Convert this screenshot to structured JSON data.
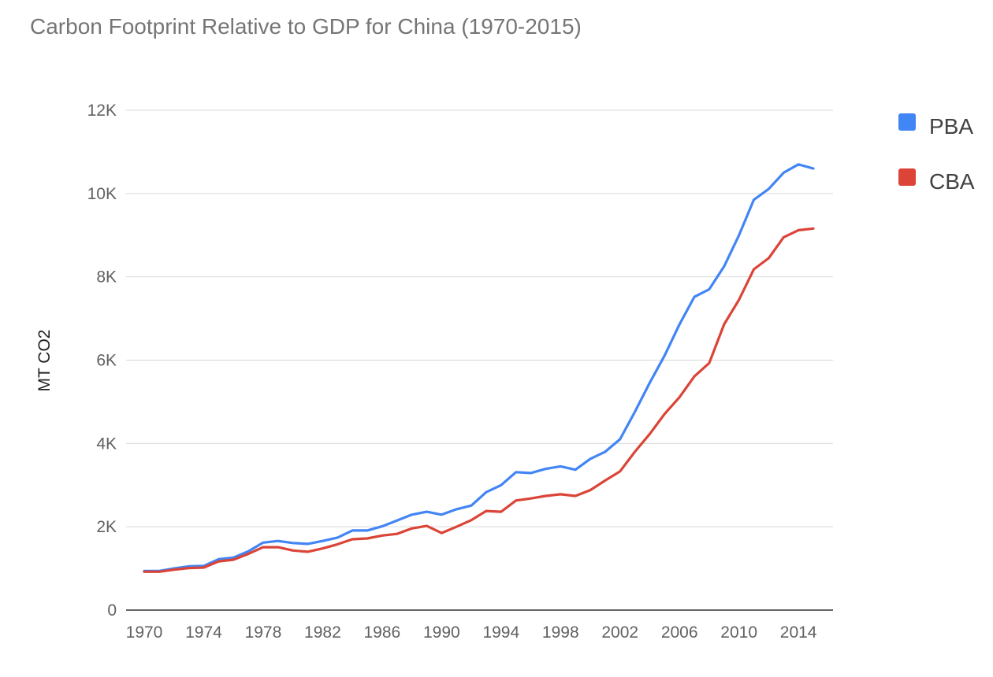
{
  "chart_data": {
    "type": "line",
    "title": "Carbon Footprint Relative to GDP for China (1970-2015)",
    "xlabel": "",
    "ylabel": "MT CO2",
    "ylim": [
      0,
      12000
    ],
    "y_ticks": [
      0,
      2000,
      4000,
      6000,
      8000,
      10000,
      12000
    ],
    "y_tick_labels": [
      "0",
      "2K",
      "4K",
      "6K",
      "8K",
      "10K",
      "12K"
    ],
    "x_ticks": [
      1970,
      1974,
      1978,
      1982,
      1986,
      1990,
      1994,
      1998,
      2002,
      2006,
      2010,
      2014
    ],
    "x_tick_labels": [
      "1970",
      "1974",
      "1978",
      "1982",
      "1986",
      "1990",
      "1994",
      "1998",
      "2002",
      "2006",
      "2010",
      "2014"
    ],
    "xlim": [
      1970,
      2015
    ],
    "grid": true,
    "legend_position": "right",
    "x": [
      1970,
      1971,
      1972,
      1973,
      1974,
      1975,
      1976,
      1977,
      1978,
      1979,
      1980,
      1981,
      1982,
      1983,
      1984,
      1985,
      1986,
      1987,
      1988,
      1989,
      1990,
      1991,
      1992,
      1993,
      1994,
      1995,
      1996,
      1997,
      1998,
      1999,
      2000,
      2001,
      2002,
      2003,
      2004,
      2005,
      2006,
      2007,
      2008,
      2009,
      2010,
      2011,
      2012,
      2013,
      2014,
      2015
    ],
    "series": [
      {
        "name": "PBA",
        "color": "#4285f4",
        "values": [
          940,
          940,
          1000,
          1050,
          1060,
          1220,
          1260,
          1410,
          1620,
          1660,
          1610,
          1590,
          1660,
          1740,
          1910,
          1910,
          2010,
          2150,
          2290,
          2360,
          2290,
          2420,
          2510,
          2830,
          3000,
          3310,
          3290,
          3390,
          3450,
          3370,
          3630,
          3800,
          4100,
          4760,
          5460,
          6110,
          6860,
          7520,
          7700,
          8250,
          9000,
          9850,
          10110,
          10500,
          10700,
          10600
        ]
      },
      {
        "name": "CBA",
        "color": "#db4437",
        "values": [
          920,
          920,
          970,
          1010,
          1020,
          1170,
          1210,
          1350,
          1510,
          1510,
          1430,
          1400,
          1480,
          1580,
          1700,
          1720,
          1790,
          1830,
          1960,
          2020,
          1850,
          2000,
          2160,
          2380,
          2360,
          2630,
          2680,
          2740,
          2780,
          2740,
          2880,
          3110,
          3330,
          3800,
          4230,
          4710,
          5110,
          5610,
          5930,
          6860,
          7450,
          8180,
          8450,
          8950,
          9120,
          9160
        ]
      }
    ]
  }
}
